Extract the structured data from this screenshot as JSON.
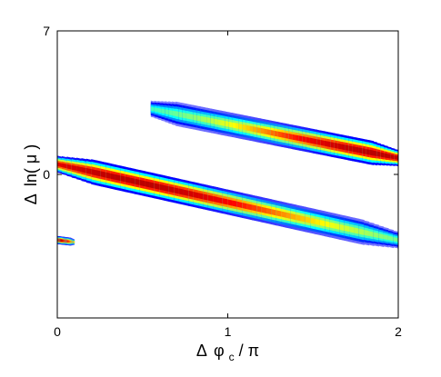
{
  "chart_data": {
    "type": "heatmap",
    "title": "",
    "xlabel": {
      "delta": "Δ",
      "symbol": "φ",
      "subscript": "c",
      "suffix": " / π"
    },
    "ylabel": {
      "delta": "Δ",
      "text": "ln( μ )"
    },
    "xlim": [
      0,
      2
    ],
    "ylim": [
      -7,
      7
    ],
    "x_ticks": [
      {
        "value": 0,
        "label": "0"
      },
      {
        "value": 1,
        "label": "1"
      },
      {
        "value": 2,
        "label": "2"
      }
    ],
    "y_ticks": [
      {
        "value": 0,
        "label": "0"
      },
      {
        "value": 7,
        "label": "7"
      }
    ],
    "grid": false,
    "colormap": [
      "#ffffff",
      "#0000ff",
      "#00ffff",
      "#ffff00",
      "#ff0000",
      "#8b0000"
    ],
    "bands": [
      {
        "name": "lower-band",
        "x_start": 0.0,
        "y_start": 0.5,
        "x_end": 2.0,
        "y_end": -3.2,
        "half_width": 0.6,
        "peak_x": 0.45
      },
      {
        "name": "upper-band",
        "x_start": 0.55,
        "y_start": 3.2,
        "x_end": 2.0,
        "y_end": 0.8,
        "half_width": 0.58,
        "peak_x": 1.85
      },
      {
        "name": "small-left-blob",
        "x_start": -0.1,
        "y_start": -3.1,
        "x_end": 0.1,
        "y_end": -3.3,
        "half_width": 0.18,
        "peak_x": 0.0
      }
    ]
  }
}
